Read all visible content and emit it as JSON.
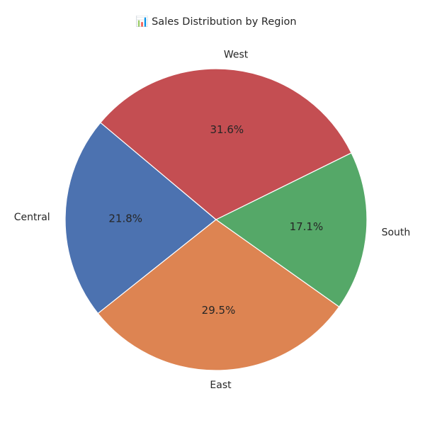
{
  "chart_data": {
    "type": "pie",
    "title": "📊 Sales Distribution by Region",
    "slices": [
      {
        "label": "Central",
        "value": 21.8,
        "pct_label": "21.8%",
        "color": "#4c72b0"
      },
      {
        "label": "East",
        "value": 29.5,
        "pct_label": "29.5%",
        "color": "#dd8452"
      },
      {
        "label": "South",
        "value": 17.1,
        "pct_label": "17.1%",
        "color": "#55a868"
      },
      {
        "label": "West",
        "value": 31.6,
        "pct_label": "31.6%",
        "color": "#c44e52"
      }
    ],
    "start_angle_deg": 140,
    "direction": "counterclockwise",
    "legend": "none"
  }
}
